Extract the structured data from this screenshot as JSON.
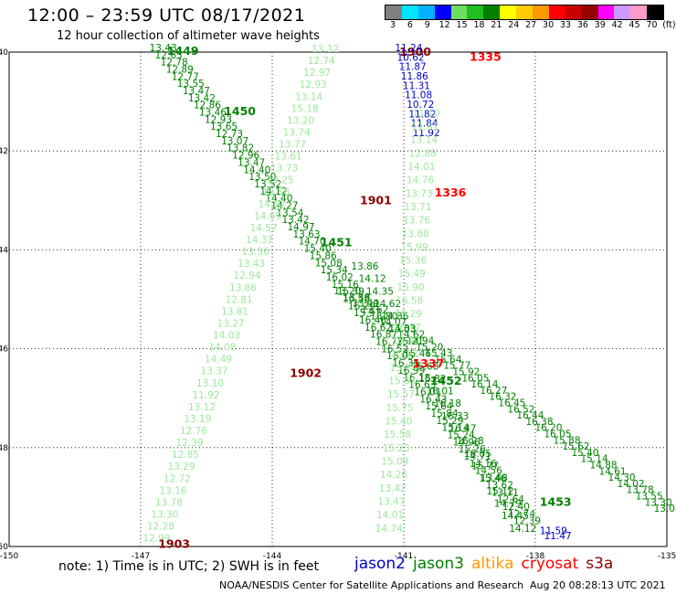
{
  "header": {
    "title": "12:00 – 23:59 UTC 08/17/2021",
    "subtitle": "12 hour collection of altimeter wave heights"
  },
  "colorbar": {
    "colors": [
      "#7f7f7f",
      "#00e5ff",
      "#00b2ff",
      "#0000ff",
      "#6fdd5f",
      "#1fbf1f",
      "#008000",
      "#ffff00",
      "#ffcc00",
      "#ff9900",
      "#ff0000",
      "#c80000",
      "#990000",
      "#ff00ff",
      "#cc99ff",
      "#ff99cc",
      "#000000"
    ],
    "labels": [
      "3",
      "6",
      "9",
      "12",
      "15",
      "18",
      "21",
      "24",
      "27",
      "30",
      "33",
      "36",
      "39",
      "42",
      "45",
      "70",
      "(ft)"
    ]
  },
  "axes": {
    "x_ticks": [
      "-150",
      "-147",
      "-144",
      "-141",
      "-138",
      "-135"
    ],
    "y_ticks": [
      "-40",
      "-42",
      "-44",
      "-46",
      "-48",
      "-50"
    ]
  },
  "passes": [
    {
      "label": "1449",
      "color": "#008000",
      "label_lon": -146.4,
      "label_lat": -39.98,
      "path": [
        [
          -146.8,
          -39.98
        ],
        [
          -138.5,
          -49.55
        ]
      ],
      "values": [
        "13.43",
        "12.65",
        "12.78",
        "12.89",
        "12.77",
        "13.55",
        "13.47",
        "13.42",
        "12.86",
        "13.46",
        "12.93",
        "13.65",
        "12.73",
        "13.07",
        "13.82",
        "12.96",
        "13.47",
        "14.40",
        "13.50",
        "13.52",
        "14.12",
        "14.40",
        "14.27",
        "13.54",
        "13.42",
        "14.97",
        "13.63",
        "14.70",
        "15.40",
        "15.86",
        "15.08",
        "15.34",
        "16.02",
        "15.16",
        "15.39",
        "16.58",
        "16.29",
        "15.97",
        "16.40",
        "16.62",
        "16.87",
        "16.77",
        "16.52",
        "16.05",
        "16.35",
        "16.99",
        "16.18",
        "16.63",
        "16.01",
        "16.43",
        "15.64",
        "15.84",
        "15.29",
        "15.14",
        "15.24",
        "14.96",
        "15.26",
        "14.71",
        "14.16",
        "14.56",
        "13.48",
        "13.62",
        "13.11",
        "12.64",
        "12.40",
        "12.74",
        "12.39"
      ]
    },
    {
      "label": "1450",
      "color": "#008000",
      "label_lon": -145.1,
      "label_lat": -41.2,
      "path": [
        [
          -142.6,
          -44.9
        ],
        [
          -135.3,
          -49.3
        ]
      ],
      "values": [
        "13.20",
        "13.38",
        "13.49",
        "13.62",
        "13.80",
        "14.07",
        "14.33",
        "14.62",
        "14.94",
        "15.20",
        "15.43",
        "15.64",
        "15.77",
        "15.92",
        "16.05",
        "16.14",
        "16.27",
        "16.32",
        "16.45",
        "16.52",
        "16.44",
        "16.38",
        "16.20",
        "16.05",
        "15.88",
        "15.62",
        "15.40",
        "15.14",
        "14.88",
        "14.61",
        "14.30",
        "14.02",
        "13.78",
        "13.55",
        "13.30",
        "13.08"
      ]
    },
    {
      "label": "1451",
      "color": "#008000",
      "label_lon": -142.9,
      "label_lat": -43.85,
      "path": [
        [
          -142.2,
          -44.4
        ],
        [
          -138.6,
          -49.7
        ]
      ],
      "values": [
        "13.86",
        "14.12",
        "14.35",
        "14.62",
        "14.86",
        "15.03",
        "15.21",
        "15.46",
        "15.68",
        "15.82",
        "16.01",
        "16.18",
        "16.33",
        "16.47",
        "16.28",
        "16.05",
        "15.77",
        "15.46",
        "15.12",
        "14.79",
        "14.45",
        "14.12"
      ]
    },
    {
      "label": "1452",
      "color": "#008000",
      "label_lon": -140.4,
      "label_lat": -46.65,
      "path": [
        [
          -140.4,
          -46.65
        ],
        [
          -139.8,
          -47.2
        ]
      ],
      "values": []
    },
    {
      "label": "1453",
      "color": "#008000",
      "label_lon": -137.9,
      "label_lat": -49.1,
      "path": [
        [
          -137.9,
          -49.1
        ],
        [
          -137.5,
          -49.4
        ]
      ],
      "values": []
    },
    {
      "label": "",
      "color": "#9be89b",
      "label_lon": 0,
      "label_lat": 0,
      "path": [
        [
          -143.1,
          -40.0
        ],
        [
          -146.95,
          -49.9
        ]
      ],
      "values": [
        "13.12",
        "12.74",
        "12.97",
        "12.93",
        "13.14",
        "15.18",
        "13.20",
        "13.74",
        "13.77",
        "13.61",
        "13.73",
        "13.25",
        "13.58",
        "14.12",
        "14.69",
        "14.57",
        "14.31",
        "13.56",
        "13.43",
        "12.94",
        "13.86",
        "12.81",
        "13.81",
        "13.27",
        "14.03",
        "14.08",
        "14.49",
        "13.37",
        "13.10",
        "11.92",
        "13.12",
        "13.19",
        "12.76",
        "12.39",
        "12.85",
        "13.29",
        "12.72",
        "13.16",
        "13.78",
        "13.30",
        "12.28",
        "12.99"
      ]
    },
    {
      "label": "1900",
      "color": "#8b0000",
      "label_lon": -141.1,
      "label_lat": -40.0,
      "path": [
        [
          -141.1,
          -40.0
        ],
        [
          -141.1,
          -40.0
        ]
      ],
      "values": []
    },
    {
      "label": "1901",
      "color": "#8b0000",
      "label_lon": -142.0,
      "label_lat": -43.0,
      "path": [
        [
          -142.0,
          -43.0
        ],
        [
          -142.0,
          -43.0
        ]
      ],
      "values": []
    },
    {
      "label": "1902",
      "color": "#8b0000",
      "label_lon": -143.6,
      "label_lat": -46.5,
      "path": [
        [
          -143.6,
          -46.5
        ],
        [
          -143.6,
          -46.5
        ]
      ],
      "values": []
    },
    {
      "label": "1903",
      "color": "#8b0000",
      "label_lon": -146.6,
      "label_lat": -49.95,
      "path": [
        [
          -146.6,
          -49.95
        ],
        [
          -146.6,
          -49.95
        ]
      ],
      "values": []
    },
    {
      "label": "",
      "color": "#0000cc",
      "label_lon": 0,
      "label_lat": 0,
      "path": [
        [
          -141.2,
          -39.98
        ],
        [
          -140.8,
          -41.7
        ]
      ],
      "values": [
        "11.24",
        "10.62",
        "11.87",
        "11.86",
        "11.31",
        "11.08",
        "10.72",
        "11.82",
        "11.84",
        "11.92"
      ]
    },
    {
      "label": "",
      "color": "#9be89b",
      "label_lon": 0,
      "label_lat": 0,
      "path": [
        [
          -140.8,
          -41.3
        ],
        [
          -141.65,
          -49.7
        ]
      ],
      "values": [
        "11.10",
        "11.61",
        "13.14",
        "12.88",
        "14.01",
        "14.76",
        "13.73",
        "13.71",
        "13.76",
        "13.88",
        "15.99",
        "15.36",
        "15.49",
        "15.90",
        "16.58",
        "16.29",
        "16.77",
        "15.69",
        "15.37",
        "15.74",
        "15.63",
        "15.57",
        "15.75",
        "15.40",
        "15.58",
        "15.23",
        "15.09",
        "14.26",
        "13.42",
        "13.47",
        "14.01",
        "14.74"
      ]
    },
    {
      "label": "",
      "color": "#0000cc",
      "label_lon": 0,
      "label_lat": 0,
      "path": [
        [
          -137.9,
          -49.75
        ],
        [
          -137.8,
          -49.85
        ]
      ],
      "values": [
        "11.59",
        "11.47"
      ]
    },
    {
      "label": "1335",
      "color": "#ff0000",
      "label_lon": -139.5,
      "label_lat": -40.1,
      "path": [
        [
          -139.5,
          -40.1
        ],
        [
          -139.5,
          -40.1
        ]
      ],
      "values": []
    },
    {
      "label": "1336",
      "color": "#ff0000",
      "label_lon": -140.3,
      "label_lat": -42.85,
      "path": [
        [
          -140.3,
          -42.85
        ],
        [
          -140.3,
          -42.85
        ]
      ],
      "values": []
    },
    {
      "label": "1337",
      "color": "#ff0000",
      "label_lon": -140.8,
      "label_lat": -46.3,
      "path": [
        [
          -140.8,
          -46.3
        ],
        [
          -140.8,
          -46.3
        ]
      ],
      "values": []
    }
  ],
  "footer": {
    "note": "note: 1) Time is in UTC; 2) SWH is in feet",
    "legend": [
      {
        "name": "jason2",
        "color": "#0000cc"
      },
      {
        "name": "jason3",
        "color": "#008000"
      },
      {
        "name": "altika",
        "color": "#ff9900"
      },
      {
        "name": "cryosat",
        "color": "#ff0000"
      },
      {
        "name": "s3a",
        "color": "#8b0000"
      }
    ],
    "credit": "NOAA/NESDIS Center for Satellite Applications and Research",
    "timestamp": "Aug 20 08:28:13 UTC 2021"
  }
}
